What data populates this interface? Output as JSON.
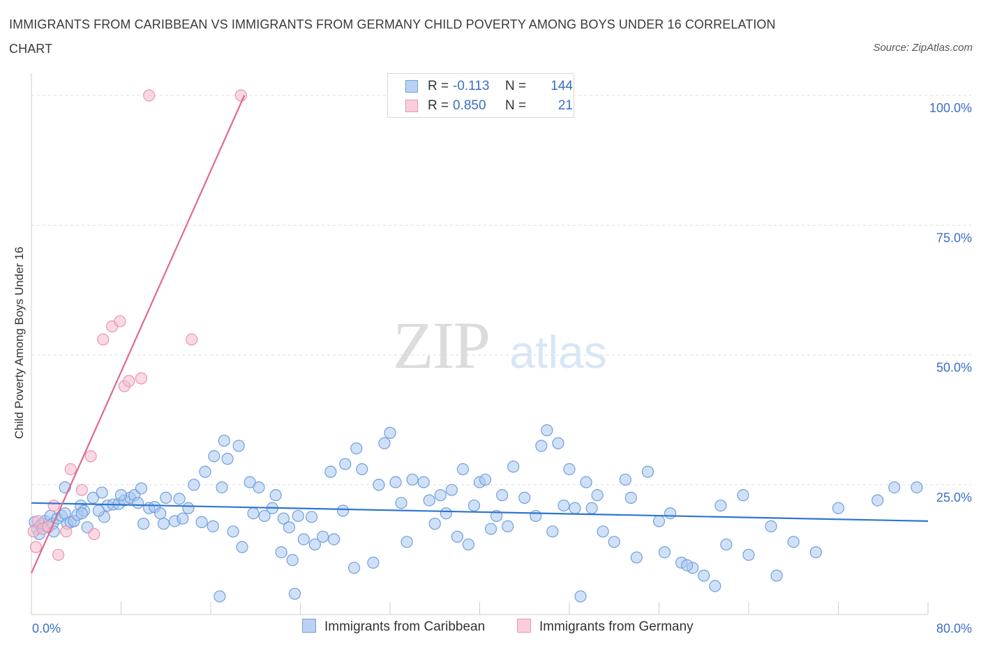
{
  "header": {
    "title": "IMMIGRANTS FROM CARIBBEAN VS IMMIGRANTS FROM GERMANY CHILD POVERTY AMONG BOYS UNDER 16 CORRELATION CHART",
    "source": "Source: ZipAtlas.com"
  },
  "watermark": {
    "zip": "ZIP",
    "atlas": "atlas"
  },
  "legend": {
    "rows": [
      {
        "r_label": "R =",
        "r_value": "-0.113",
        "n_label": "N =",
        "n_value": "144"
      },
      {
        "r_label": "R =",
        "r_value": "0.850",
        "n_label": "N =",
        "n_value": "21"
      }
    ]
  },
  "bottom_legend": {
    "caribbean": "Immigrants from Caribbean",
    "germany": "Immigrants from Germany"
  },
  "colors": {
    "caribbean_fill": "#a9c8f0",
    "caribbean_stroke": "#6f9fdc",
    "caribbean_line": "#2f74d0",
    "germany_fill": "#f7bfd0",
    "germany_stroke": "#ec93b0",
    "germany_line": "#e0698f",
    "axis_label": "#3a6fc4",
    "grid": "#dddddd"
  },
  "chart_data": {
    "type": "scatter",
    "title": "IMMIGRANTS FROM CARIBBEAN VS IMMIGRANTS FROM GERMANY CHILD POVERTY AMONG BOYS UNDER 16 CORRELATION CHART",
    "xlabel": "",
    "ylabel": "Child Poverty Among Boys Under 16",
    "xlim": [
      0,
      80
    ],
    "ylim": [
      0,
      100
    ],
    "x_tick_labels": [
      "0.0%",
      "80.0%"
    ],
    "y_tick_labels": [
      "100.0%",
      "75.0%",
      "50.0%",
      "25.0%"
    ],
    "y_ticks": [
      100,
      75,
      50,
      25
    ],
    "grid": true,
    "legend_position": "top-center",
    "series": [
      {
        "name": "Immigrants from Caribbean",
        "R": -0.113,
        "N": 144,
        "trend": [
          [
            0,
            21.5
          ],
          [
            80,
            18.0
          ]
        ],
        "points": [
          [
            0.3,
            17.8
          ],
          [
            0.5,
            16.5
          ],
          [
            0.8,
            17.2
          ],
          [
            1.0,
            17.5
          ],
          [
            1.2,
            18.0
          ],
          [
            1.5,
            16.8
          ],
          [
            1.7,
            19.0
          ],
          [
            1.9,
            17.5
          ],
          [
            2.3,
            18.5
          ],
          [
            2.7,
            19.0
          ],
          [
            3.0,
            19.5
          ],
          [
            3.2,
            17.5
          ],
          [
            3.5,
            17.8
          ],
          [
            3.8,
            18.0
          ],
          [
            4.1,
            19.2
          ],
          [
            4.4,
            21.0
          ],
          [
            4.7,
            20.0
          ],
          [
            5.0,
            16.8
          ],
          [
            3.0,
            24.5
          ],
          [
            6.5,
            18.8
          ],
          [
            5.5,
            22.5
          ],
          [
            6.3,
            23.5
          ],
          [
            6.8,
            21.0
          ],
          [
            7.3,
            21.2
          ],
          [
            7.8,
            21.3
          ],
          [
            8.3,
            22.0
          ],
          [
            8.8,
            22.5
          ],
          [
            9.2,
            23.0
          ],
          [
            9.8,
            24.3
          ],
          [
            10.5,
            20.5
          ],
          [
            11.0,
            20.7
          ],
          [
            11.8,
            17.5
          ],
          [
            12.8,
            18.0
          ],
          [
            12.0,
            22.5
          ],
          [
            13.2,
            22.3
          ],
          [
            14.0,
            20.5
          ],
          [
            15.2,
            17.8
          ],
          [
            16.2,
            17.0
          ],
          [
            17.0,
            24.5
          ],
          [
            15.5,
            27.5
          ],
          [
            16.3,
            30.5
          ],
          [
            17.5,
            30.0
          ],
          [
            18.5,
            32.5
          ],
          [
            17.2,
            33.5
          ],
          [
            19.5,
            25.5
          ],
          [
            20.3,
            24.5
          ],
          [
            21.5,
            20.5
          ],
          [
            22.5,
            18.5
          ],
          [
            23.0,
            16.8
          ],
          [
            23.8,
            19.0
          ],
          [
            25.0,
            18.8
          ],
          [
            26.0,
            15.0
          ],
          [
            27.0,
            14.5
          ],
          [
            26.7,
            27.5
          ],
          [
            28.0,
            29.0
          ],
          [
            29.0,
            32.0
          ],
          [
            29.5,
            28.0
          ],
          [
            31.0,
            25.0
          ],
          [
            31.5,
            33.0
          ],
          [
            32.0,
            35.0
          ],
          [
            32.5,
            25.5
          ],
          [
            33.0,
            21.5
          ],
          [
            34.0,
            26.0
          ],
          [
            35.0,
            25.5
          ],
          [
            36.5,
            23.0
          ],
          [
            37.0,
            19.5
          ],
          [
            38.0,
            15.0
          ],
          [
            38.5,
            28.0
          ],
          [
            39.5,
            21.0
          ],
          [
            40.0,
            25.5
          ],
          [
            40.5,
            26.0
          ],
          [
            41.5,
            19.0
          ],
          [
            42.5,
            17.0
          ],
          [
            42.0,
            23.0
          ],
          [
            43.0,
            28.5
          ],
          [
            45.5,
            32.5
          ],
          [
            46.0,
            35.5
          ],
          [
            47.0,
            33.0
          ],
          [
            47.5,
            21.0
          ],
          [
            48.0,
            28.0
          ],
          [
            48.5,
            20.5
          ],
          [
            49.5,
            25.5
          ],
          [
            50.0,
            20.5
          ],
          [
            51.0,
            16.0
          ],
          [
            52.0,
            14.0
          ],
          [
            53.0,
            26.0
          ],
          [
            54.0,
            11.0
          ],
          [
            55.0,
            27.5
          ],
          [
            56.5,
            12.0
          ],
          [
            57.0,
            19.5
          ],
          [
            58.0,
            10.0
          ],
          [
            59.0,
            9.0
          ],
          [
            60.0,
            7.5
          ],
          [
            61.0,
            5.5
          ],
          [
            62.0,
            13.5
          ],
          [
            63.5,
            23.0
          ],
          [
            64.0,
            11.5
          ],
          [
            66.0,
            17.0
          ],
          [
            66.5,
            7.5
          ],
          [
            68.0,
            14.0
          ],
          [
            70.0,
            12.0
          ],
          [
            72.0,
            20.5
          ],
          [
            75.5,
            22.0
          ],
          [
            77.0,
            24.5
          ],
          [
            79.0,
            24.5
          ],
          [
            0.7,
            15.5
          ],
          [
            2.0,
            16.0
          ],
          [
            4.5,
            19.5
          ],
          [
            6.0,
            20.0
          ],
          [
            8.0,
            23.0
          ],
          [
            9.5,
            21.5
          ],
          [
            10.0,
            17.5
          ],
          [
            11.5,
            19.5
          ],
          [
            13.5,
            18.5
          ],
          [
            14.5,
            25.0
          ],
          [
            18.0,
            16.0
          ],
          [
            18.8,
            13.0
          ],
          [
            19.8,
            19.5
          ],
          [
            20.8,
            19.0
          ],
          [
            21.8,
            23.0
          ],
          [
            22.3,
            12.0
          ],
          [
            23.3,
            10.5
          ],
          [
            24.3,
            14.5
          ],
          [
            25.3,
            13.5
          ],
          [
            27.8,
            20.0
          ],
          [
            28.8,
            9.0
          ],
          [
            30.5,
            10.0
          ],
          [
            33.5,
            14.0
          ],
          [
            35.5,
            22.0
          ],
          [
            36.0,
            17.5
          ],
          [
            37.5,
            24.0
          ],
          [
            39.0,
            13.5
          ],
          [
            41.0,
            16.5
          ],
          [
            44.0,
            22.5
          ],
          [
            45.0,
            19.0
          ],
          [
            46.5,
            16.0
          ],
          [
            49.0,
            3.5
          ],
          [
            50.5,
            23.0
          ],
          [
            53.5,
            22.5
          ],
          [
            56.0,
            18.0
          ],
          [
            58.5,
            9.5
          ],
          [
            61.5,
            21.0
          ],
          [
            23.5,
            4.0
          ],
          [
            16.8,
            3.5
          ]
        ]
      },
      {
        "name": "Immigrants from Germany",
        "R": 0.85,
        "N": 21,
        "trend": [
          [
            0,
            8.0
          ],
          [
            19.0,
            100.0
          ]
        ],
        "points": [
          [
            0.2,
            16.0
          ],
          [
            0.4,
            13.0
          ],
          [
            0.6,
            18.0
          ],
          [
            1.0,
            16.5
          ],
          [
            1.5,
            17.0
          ],
          [
            2.0,
            21.0
          ],
          [
            2.4,
            11.5
          ],
          [
            3.1,
            16.0
          ],
          [
            3.5,
            28.0
          ],
          [
            4.5,
            24.0
          ],
          [
            5.3,
            30.5
          ],
          [
            5.6,
            15.5
          ],
          [
            6.4,
            53.0
          ],
          [
            7.2,
            55.5
          ],
          [
            7.9,
            56.5
          ],
          [
            8.3,
            44.0
          ],
          [
            8.7,
            45.0
          ],
          [
            9.8,
            45.5
          ],
          [
            14.3,
            53.0
          ],
          [
            10.5,
            100.0
          ],
          [
            18.7,
            100.0
          ]
        ]
      }
    ]
  }
}
